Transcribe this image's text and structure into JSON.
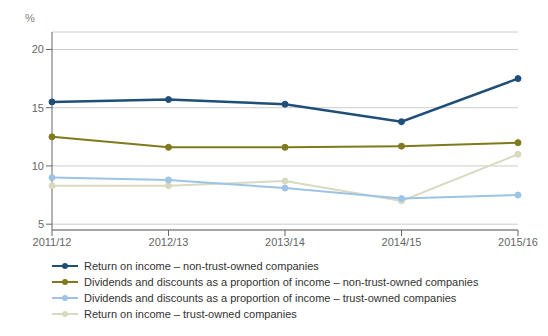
{
  "chart_data": {
    "type": "line",
    "categories": [
      "2011/12",
      "2012/13",
      "2013/14",
      "2014/15",
      "2015/16"
    ],
    "series": [
      {
        "name": "Return on income – non-trust-owned companies",
        "color": "#1f4e79",
        "marker": "circle",
        "values": [
          15.5,
          15.7,
          15.3,
          13.8,
          17.5
        ]
      },
      {
        "name": "Dividends and discounts as a proportion of income – non-trust-owned companies",
        "color": "#7f7a1b",
        "marker": "circle",
        "values": [
          12.5,
          11.6,
          11.6,
          11.7,
          12.0
        ]
      },
      {
        "name": "Dividends and discounts as a proportion of income – trust-owned companies",
        "color": "#9dc3e6",
        "marker": "circle",
        "values": [
          9.0,
          8.8,
          8.1,
          7.2,
          7.5
        ]
      },
      {
        "name": "Return on income – trust-owned companies",
        "color": "#d9d9c0",
        "marker": "circle",
        "values": [
          8.3,
          8.3,
          8.7,
          7.0,
          11.0
        ]
      }
    ],
    "y_label": "%",
    "ylim": [
      4.5,
      21.5
    ],
    "yticks": [
      5,
      10,
      15,
      20
    ],
    "grid": true,
    "legend": "bottom"
  }
}
